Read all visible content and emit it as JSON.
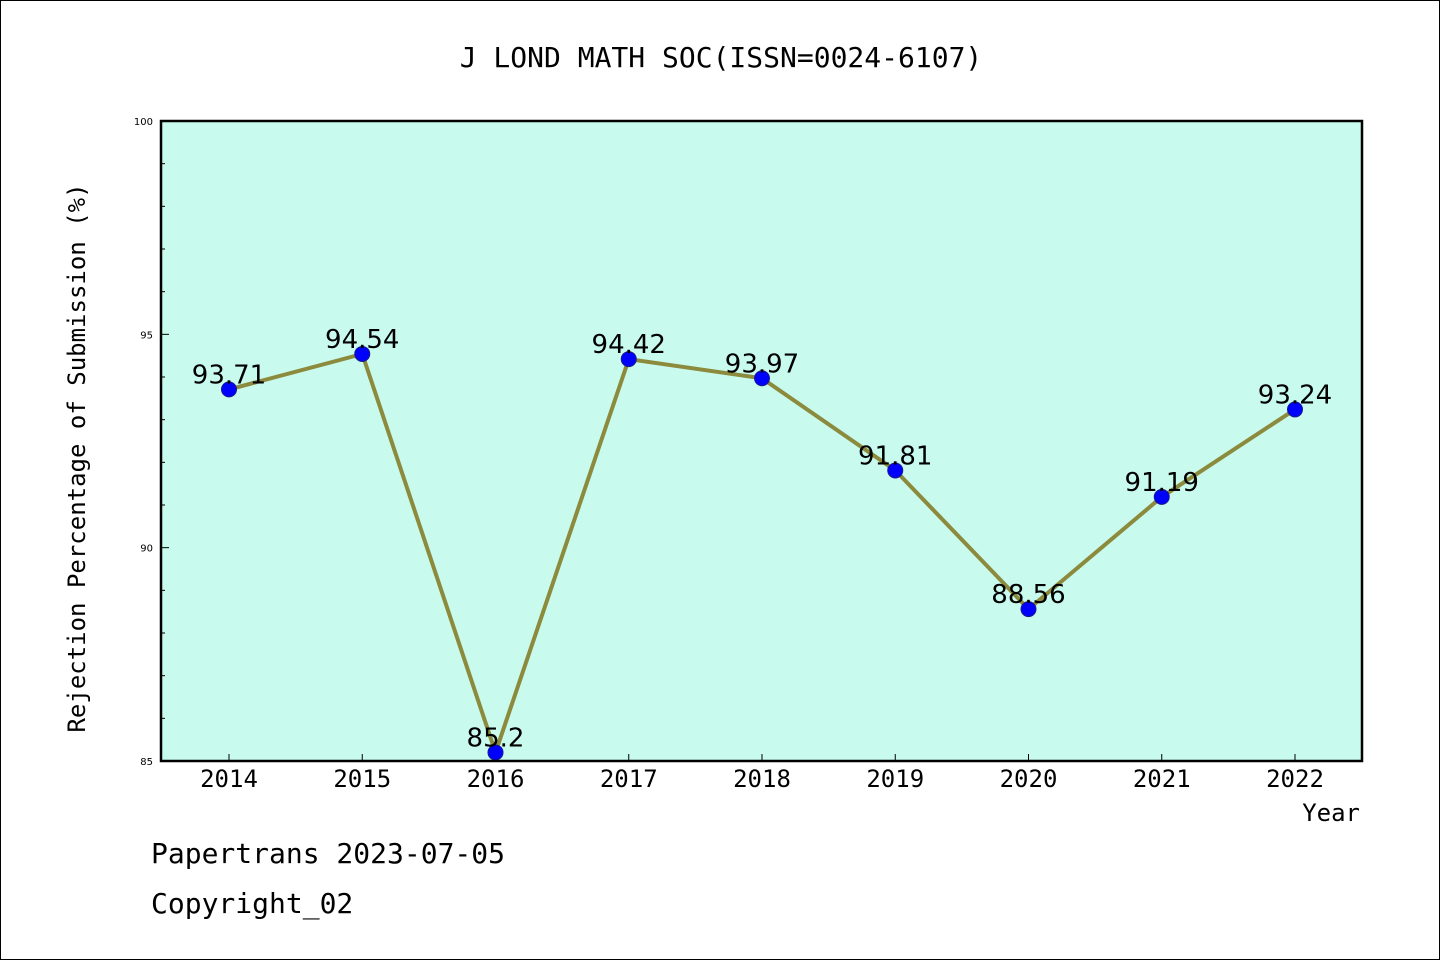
{
  "chart_data": {
    "type": "line",
    "title": "J LOND MATH SOC(ISSN=0024-6107)",
    "xlabel": "Year",
    "ylabel": "Rejection Percentage of Submission (%)",
    "categories": [
      "2014",
      "2015",
      "2016",
      "2017",
      "2018",
      "2019",
      "2020",
      "2021",
      "2022"
    ],
    "series": [
      {
        "values": [
          93.71,
          94.54,
          85.2,
          94.42,
          93.97,
          91.81,
          88.56,
          91.19,
          93.24
        ],
        "labels": [
          "93.71",
          "94.54",
          "85.2",
          "94.42",
          "93.97",
          "91.81",
          "88.56",
          "91.19",
          "93.24"
        ]
      }
    ],
    "ylim": [
      85,
      100
    ],
    "yticks": [
      "85",
      "90",
      "95",
      "100"
    ],
    "grid": false,
    "colors": {
      "plot_background": "#c8fbee",
      "line": "#8c8a3c",
      "marker": "#0000ff"
    }
  },
  "footer": {
    "line1": "Papertrans 2023-07-05",
    "line2": "Copyright_02"
  }
}
